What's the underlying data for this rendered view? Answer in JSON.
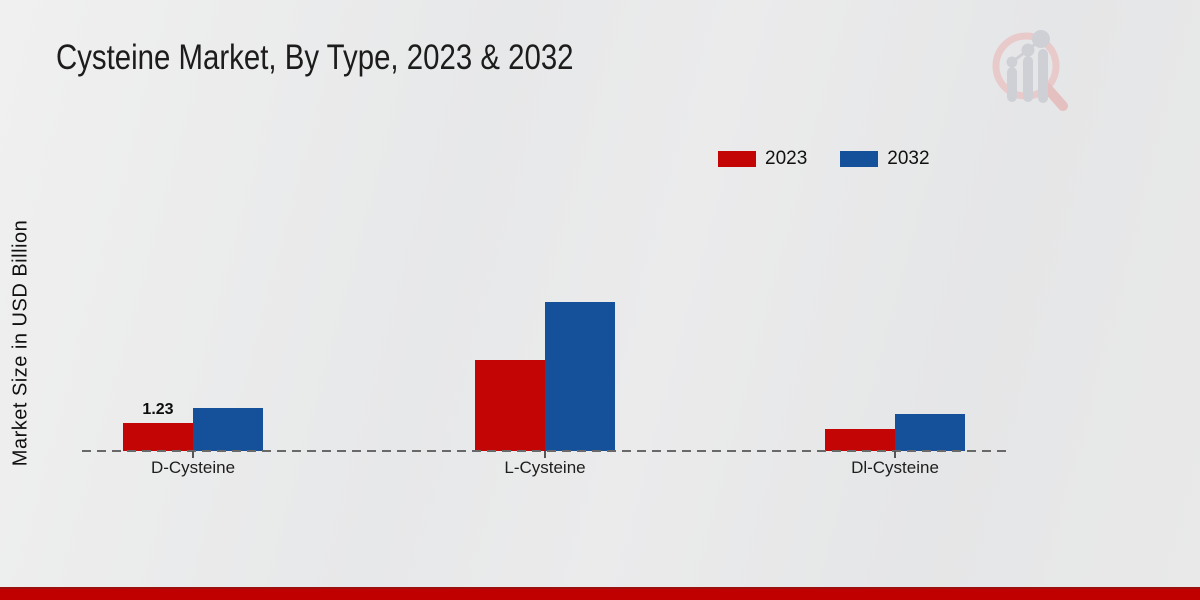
{
  "title": "Cysteine Market, By Type, 2023 & 2032",
  "y_axis_label": "Market Size in USD Billion",
  "colors": {
    "bar_2023": "#c40505",
    "bar_2032": "#15519b",
    "bottom_stripe": "#c00000",
    "axis_dash": "#696969",
    "text": "#1c1c1c"
  },
  "watermark_icon": "magnifier-bar-chart-logo",
  "chart_data": {
    "type": "bar",
    "title": "Cysteine Market, By Type, 2023 & 2032",
    "ylabel": "Market Size in USD Billion",
    "categories": [
      "D-Cysteine",
      "L-Cysteine",
      "Dl-Cysteine"
    ],
    "series": [
      {
        "name": "2023",
        "color": "#c40505",
        "values": [
          1.23,
          4.0,
          0.97
        ]
      },
      {
        "name": "2032",
        "color": "#15519b",
        "values": [
          1.89,
          6.55,
          1.63
        ]
      }
    ],
    "data_labels": [
      {
        "category_index": 0,
        "series_index": 0,
        "text": "1.23"
      }
    ],
    "ylim": [
      0,
      7
    ],
    "grid": false,
    "y_ticks_visible": false,
    "legend_position": "top-right",
    "baseline_style": "dashed"
  }
}
